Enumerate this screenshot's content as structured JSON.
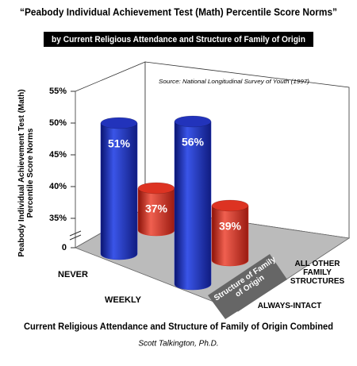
{
  "chart_data": {
    "type": "bar",
    "title": "“Peabody Individual Achievement Test (Math) Percentile Score Norms”",
    "subtitle": "by Current Religious Attendance and Structure of Family of Origin",
    "source": "Source: National Longitudinal Survey of Youth (1997)",
    "y_label": "Peabody Individual Achievement Test (Math) Percentile Score Norms",
    "x_label": "Current Religious Attendance and Structure of Family of Origin Combined",
    "z_label": "Structure of Family of Origin",
    "author": "Scott Talkington, Ph.D.",
    "categories": [
      "NEVER",
      "WEEKLY"
    ],
    "series": [
      {
        "name": "ALWAYS-INTACT",
        "color": "#2233bb",
        "values": [
          51,
          56
        ],
        "value_labels": [
          "51%",
          "56%"
        ]
      },
      {
        "name": "ALL OTHER FAMILY STRUCTURES",
        "color": "#dd3322",
        "values": [
          37,
          39
        ],
        "value_labels": [
          "37%",
          "39%"
        ]
      }
    ],
    "ylim": [
      0,
      55
    ],
    "yticks": [
      0,
      {
        "value": 35,
        "label": "35%"
      },
      {
        "value": 40,
        "label": "40%"
      },
      {
        "value": 45,
        "label": "45%"
      },
      {
        "value": 50,
        "label": "50%"
      },
      {
        "value": 55,
        "label": "55%"
      }
    ],
    "axis_break": true
  }
}
